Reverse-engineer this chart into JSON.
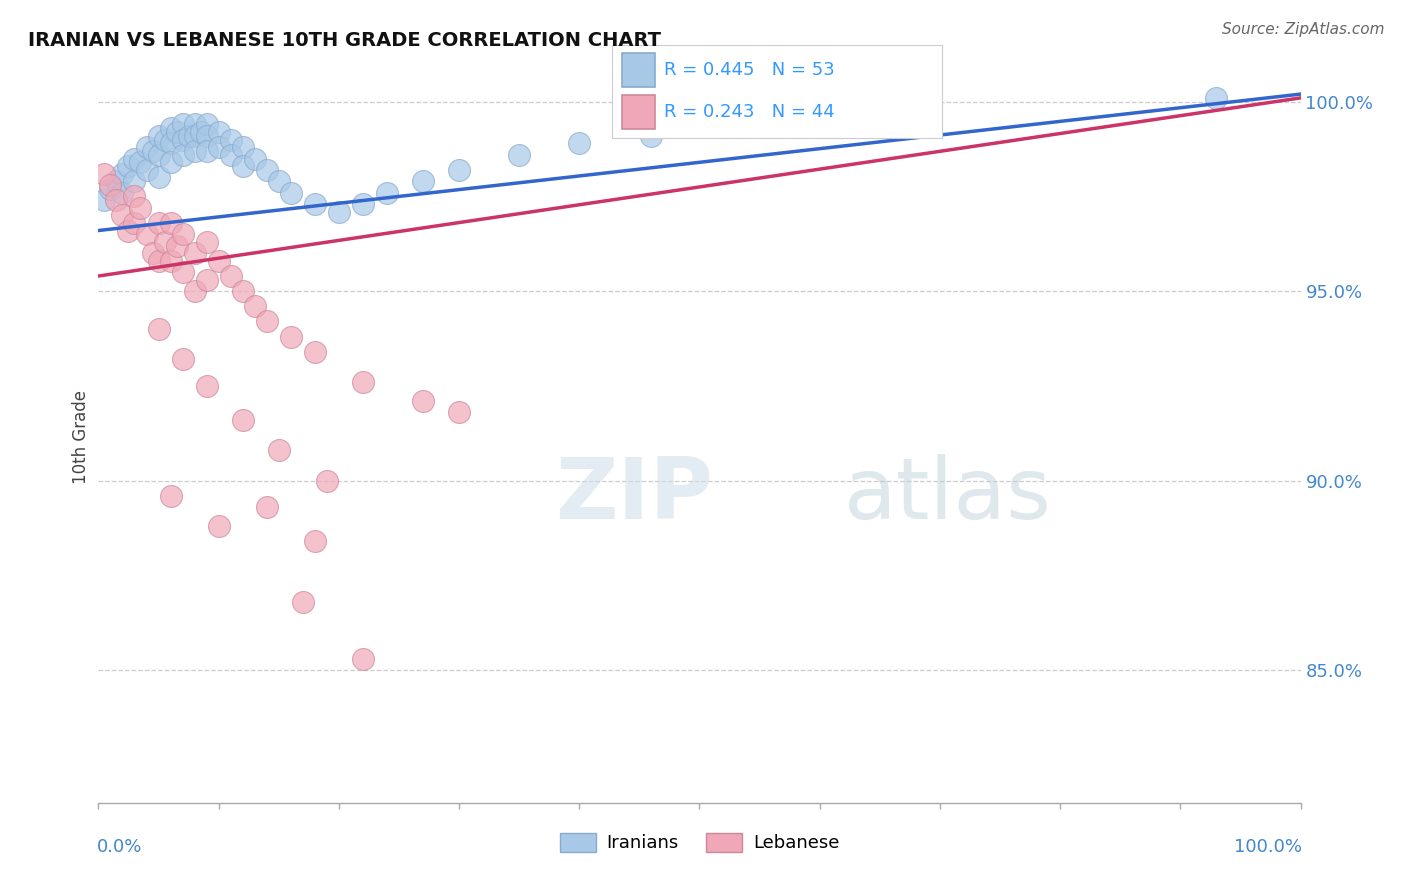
{
  "title": "IRANIAN VS LEBANESE 10TH GRADE CORRELATION CHART",
  "source": "Source: ZipAtlas.com",
  "ylabel": "10th Grade",
  "xlim": [
    0.0,
    1.0
  ],
  "ylim": [
    0.815,
    1.008
  ],
  "yticks": [
    0.85,
    0.9,
    0.95,
    1.0
  ],
  "ytick_labels": [
    "85.0%",
    "90.0%",
    "95.0%",
    "100.0%"
  ],
  "iranian_R": 0.445,
  "iranian_N": 53,
  "lebanese_R": 0.243,
  "lebanese_N": 44,
  "blue_color": "#a8c8e8",
  "pink_color": "#f0a8b8",
  "blue_edge_color": "#88aacc",
  "pink_edge_color": "#cc8899",
  "blue_line_color": "#3366cc",
  "pink_line_color": "#cc3366",
  "legend_text_color": "#3399ff",
  "source_color": "#666666",
  "title_color": "#111111",
  "grid_color": "#cccccc",
  "axis_label_color": "#4488cc",
  "background_color": "#ffffff",
  "iran_x": [
    0.005,
    0.01,
    0.015,
    0.02,
    0.02,
    0.025,
    0.03,
    0.03,
    0.035,
    0.04,
    0.04,
    0.045,
    0.05,
    0.05,
    0.05,
    0.055,
    0.06,
    0.06,
    0.06,
    0.065,
    0.07,
    0.07,
    0.07,
    0.075,
    0.08,
    0.08,
    0.08,
    0.085,
    0.09,
    0.09,
    0.09,
    0.1,
    0.1,
    0.11,
    0.11,
    0.12,
    0.12,
    0.13,
    0.14,
    0.15,
    0.16,
    0.18,
    0.2,
    0.22,
    0.24,
    0.27,
    0.3,
    0.35,
    0.4,
    0.46,
    0.55,
    0.65,
    0.93
  ],
  "iran_y": [
    0.974,
    0.977,
    0.979,
    0.981,
    0.976,
    0.983,
    0.985,
    0.979,
    0.984,
    0.988,
    0.982,
    0.987,
    0.991,
    0.986,
    0.98,
    0.99,
    0.993,
    0.989,
    0.984,
    0.992,
    0.994,
    0.99,
    0.986,
    0.991,
    0.994,
    0.991,
    0.987,
    0.992,
    0.994,
    0.991,
    0.987,
    0.992,
    0.988,
    0.99,
    0.986,
    0.988,
    0.983,
    0.985,
    0.982,
    0.979,
    0.976,
    0.973,
    0.971,
    0.973,
    0.976,
    0.979,
    0.982,
    0.986,
    0.989,
    0.991,
    0.994,
    0.996,
    1.001
  ],
  "leb_x": [
    0.005,
    0.01,
    0.015,
    0.02,
    0.025,
    0.03,
    0.03,
    0.035,
    0.04,
    0.045,
    0.05,
    0.05,
    0.055,
    0.06,
    0.06,
    0.065,
    0.07,
    0.07,
    0.08,
    0.08,
    0.09,
    0.09,
    0.1,
    0.11,
    0.12,
    0.13,
    0.14,
    0.16,
    0.18,
    0.22,
    0.27,
    0.3,
    0.05,
    0.07,
    0.09,
    0.12,
    0.15,
    0.19,
    0.06,
    0.1,
    0.14,
    0.18,
    0.17,
    0.22
  ],
  "leb_y": [
    0.981,
    0.978,
    0.974,
    0.97,
    0.966,
    0.975,
    0.968,
    0.972,
    0.965,
    0.96,
    0.968,
    0.958,
    0.963,
    0.968,
    0.958,
    0.962,
    0.965,
    0.955,
    0.96,
    0.95,
    0.963,
    0.953,
    0.958,
    0.954,
    0.95,
    0.946,
    0.942,
    0.938,
    0.934,
    0.926,
    0.921,
    0.918,
    0.94,
    0.932,
    0.925,
    0.916,
    0.908,
    0.9,
    0.896,
    0.888,
    0.893,
    0.884,
    0.868,
    0.853
  ],
  "iran_trend_x0": 0.0,
  "iran_trend_x1": 1.0,
  "iran_trend_y0": 0.966,
  "iran_trend_y1": 1.002,
  "leb_trend_x0": 0.0,
  "leb_trend_x1": 1.0,
  "leb_trend_y0": 0.954,
  "leb_trend_y1": 1.001
}
